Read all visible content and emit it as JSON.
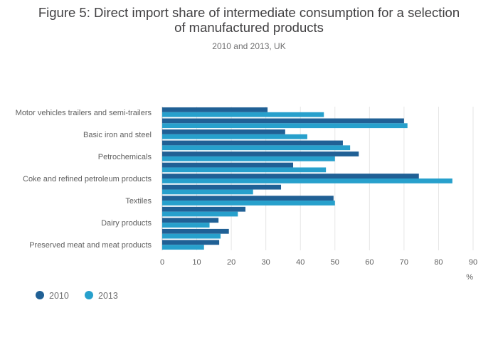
{
  "chart_data": {
    "type": "bar",
    "orientation": "horizontal",
    "title_lines": [
      "Figure 5: Direct import share of intermediate consumption for a selection",
      "of manufactured products"
    ],
    "subtitle": "2010 and 2013, UK",
    "xlabel": "%",
    "xlim": [
      0,
      90
    ],
    "xticks": [
      0,
      10,
      20,
      30,
      40,
      50,
      60,
      70,
      80,
      90
    ],
    "grid": true,
    "legend_position": "bottom-left",
    "category_labels": [
      "Motor vehicles trailers and semi-trailers",
      "",
      "Basic iron and steel",
      "",
      "Petrochemicals",
      "",
      "Coke and refined petroleum products",
      "",
      "Textiles",
      "",
      "Dairy products",
      "",
      "Preserved meat and meat products"
    ],
    "series": [
      {
        "name": "2010",
        "color": "#206095",
        "values": [
          30.5,
          70,
          35.6,
          52.3,
          56.9,
          37.9,
          74.3,
          34.4,
          49.6,
          24.1,
          16.3,
          19.3,
          16.5
        ]
      },
      {
        "name": "2013",
        "color": "#27a0cc",
        "values": [
          46.8,
          71,
          42,
          54.4,
          50,
          47.4,
          84,
          26.3,
          50,
          21.9,
          13.7,
          16.9,
          12.1
        ]
      }
    ]
  }
}
